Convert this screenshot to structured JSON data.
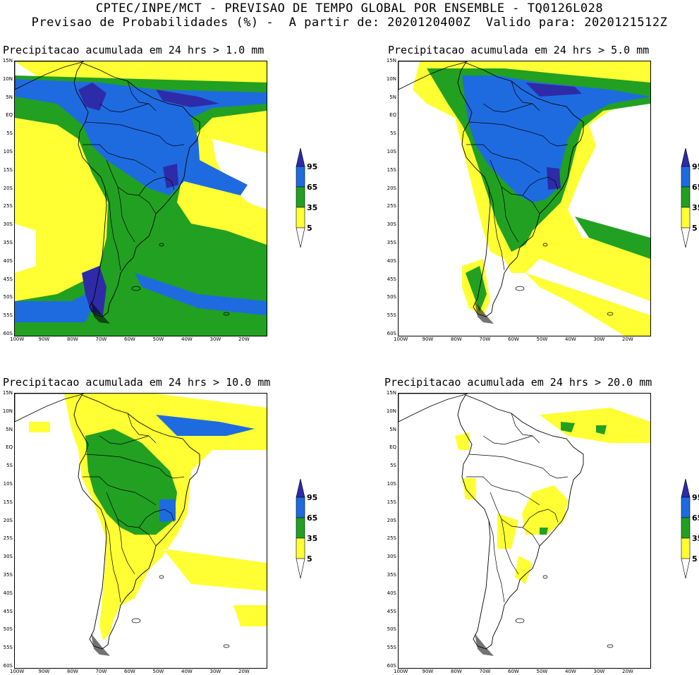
{
  "header": {
    "line1": "CPTEC/INPE/MCT - PREVISAO DE TEMPO GLOBAL POR ENSEMBLE - TQ0126L028",
    "line2": "Previsao de Probabilidades (%) -  A partir de: 2020120400Z  Valido para: 2020121512Z"
  },
  "panels": [
    {
      "title": "Precipitacao acumulada em 24 hrs > 1.0 mm",
      "threshold_mm": 1.0
    },
    {
      "title": "Precipitacao acumulada em 24 hrs > 5.0 mm",
      "threshold_mm": 5.0
    },
    {
      "title": "Precipitacao acumulada em 24 hrs > 10.0 mm",
      "threshold_mm": 10.0
    },
    {
      "title": "Precipitacao acumulada em 24 hrs > 20.0 mm",
      "threshold_mm": 20.0
    }
  ],
  "lat_labels": [
    "15N",
    "10N",
    "5N",
    "EQ",
    "5S",
    "10S",
    "15S",
    "20S",
    "25S",
    "30S",
    "35S",
    "40S",
    "45S",
    "50S",
    "55S",
    "60S"
  ],
  "lon_labels": [
    "100W",
    "90W",
    "80W",
    "70W",
    "60W",
    "50W",
    "40W",
    "30W",
    "20W"
  ],
  "colorbar": {
    "labels": [
      "95",
      "65",
      "35",
      "5"
    ],
    "colors": {
      "c5": "#ffff33",
      "c35": "#22a022",
      "c65": "#1e6be0",
      "c95": "#2e2ba8"
    }
  }
}
